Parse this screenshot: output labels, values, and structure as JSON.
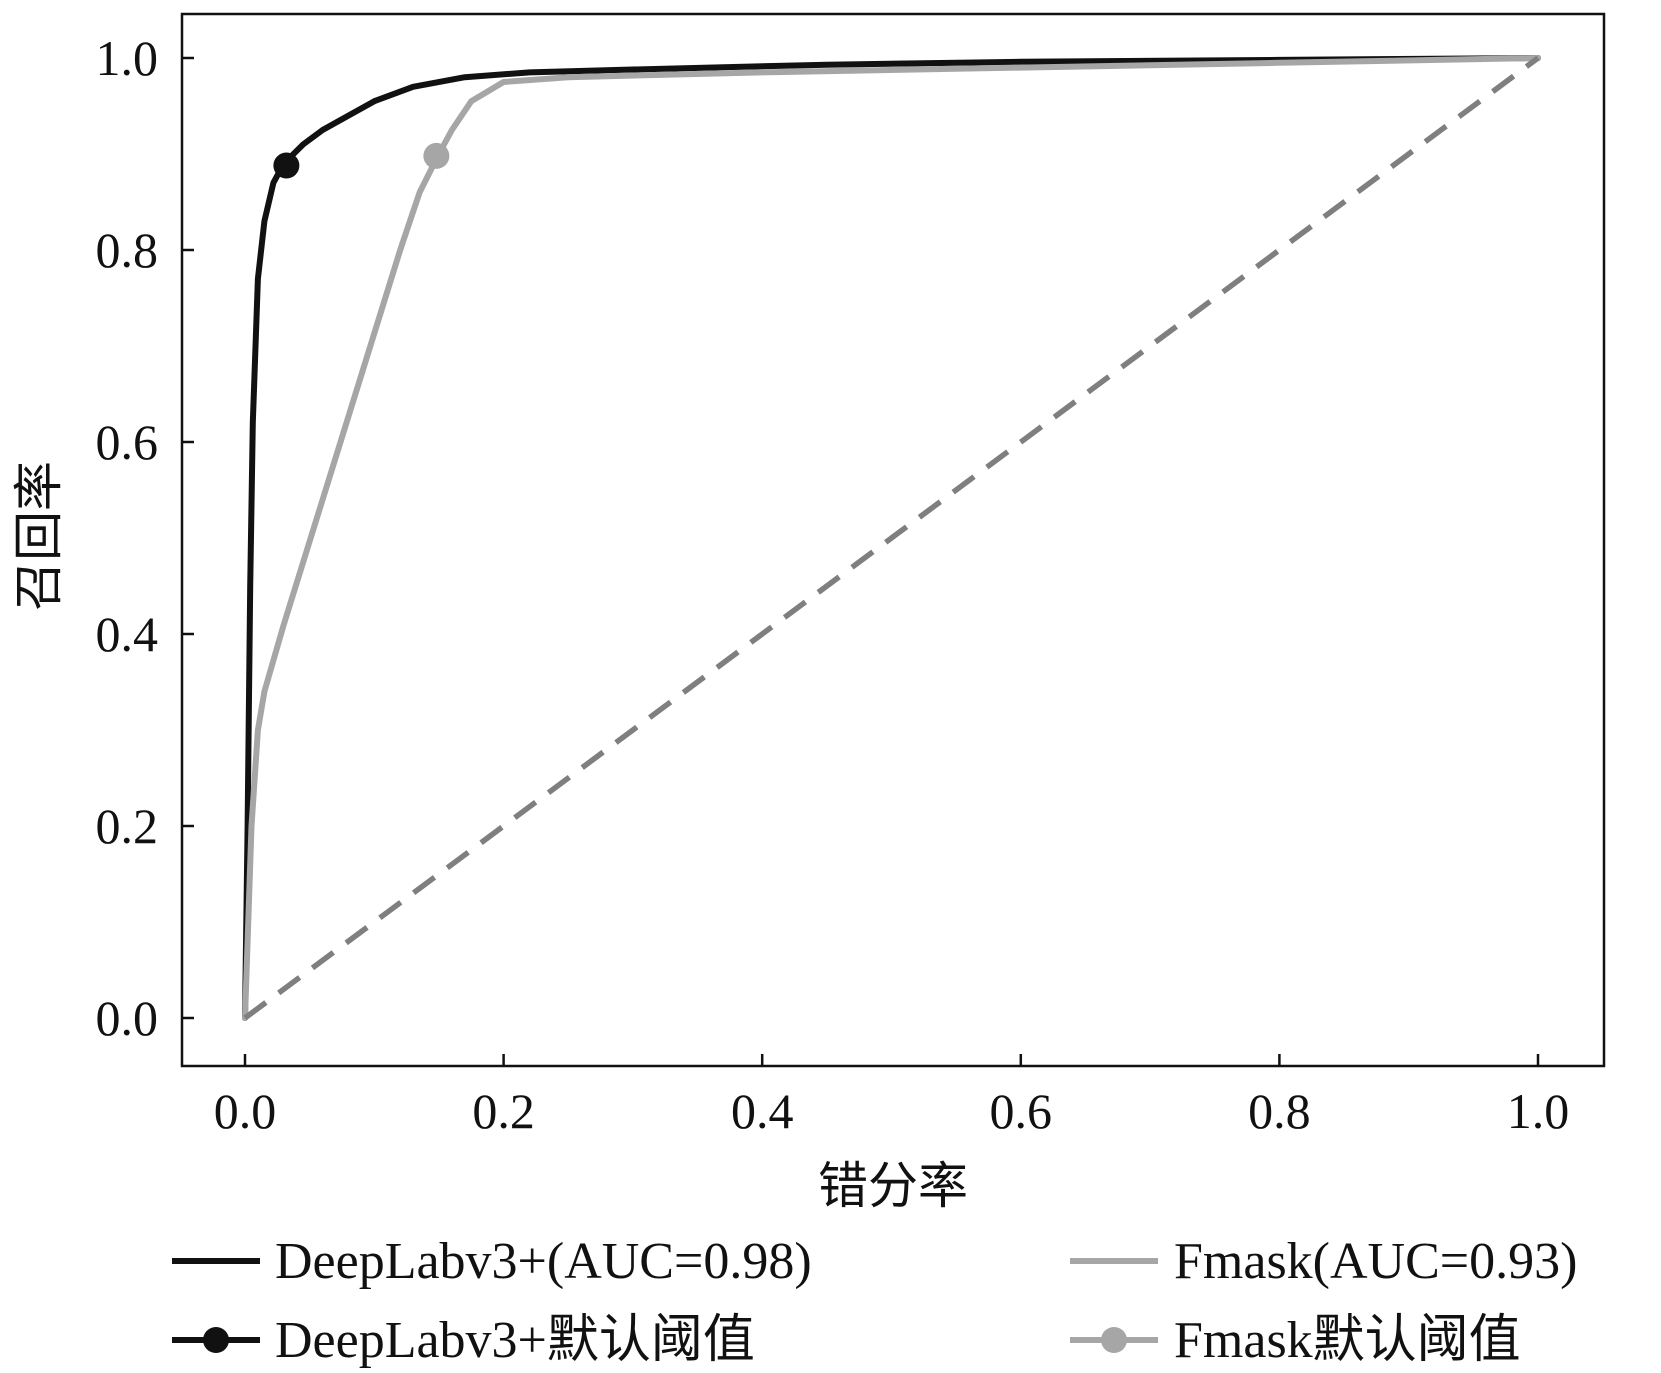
{
  "chart_data": {
    "type": "line",
    "title": "",
    "xlabel": "错分率",
    "ylabel": "召回率",
    "xlim": [
      -0.05,
      1.05
    ],
    "ylim": [
      -0.05,
      1.05
    ],
    "xticks": [
      "0.0",
      "0.2",
      "0.4",
      "0.6",
      "0.8",
      "1.0"
    ],
    "yticks": [
      "0.0",
      "0.2",
      "0.4",
      "0.6",
      "0.8",
      "1.0"
    ],
    "grid": false,
    "legend_position": "bottom",
    "series": [
      {
        "name": "DeepLabv3+(AUC=0.98)",
        "color": "#111111",
        "x": [
          0.0,
          0.002,
          0.004,
          0.006,
          0.01,
          0.015,
          0.022,
          0.03,
          0.045,
          0.06,
          0.08,
          0.1,
          0.13,
          0.17,
          0.22,
          0.3,
          0.45,
          0.6,
          0.8,
          1.0
        ],
        "y": [
          0.0,
          0.2,
          0.45,
          0.62,
          0.77,
          0.83,
          0.87,
          0.89,
          0.91,
          0.925,
          0.94,
          0.955,
          0.97,
          0.98,
          0.985,
          0.988,
          0.993,
          0.996,
          0.998,
          1.0
        ]
      },
      {
        "name": "Fmask(AUC=0.93)",
        "color": "#a6a6a6",
        "x": [
          0.0,
          0.005,
          0.01,
          0.015,
          0.03,
          0.06,
          0.09,
          0.12,
          0.135,
          0.15,
          0.16,
          0.175,
          0.2,
          0.25,
          0.4,
          0.6,
          0.8,
          1.0
        ],
        "y": [
          0.0,
          0.2,
          0.3,
          0.34,
          0.41,
          0.54,
          0.67,
          0.8,
          0.86,
          0.9,
          0.925,
          0.955,
          0.975,
          0.98,
          0.985,
          0.99,
          0.995,
          1.0
        ]
      },
      {
        "color": "#7f7f7f",
        "dashed": true,
        "x": [
          0.0,
          1.0
        ],
        "y": [
          0.0,
          1.0
        ]
      }
    ],
    "markers": [
      {
        "name": "DeepLabv3+默认阈值",
        "color": "#111111",
        "x": 0.032,
        "y": 0.888
      },
      {
        "name": "Fmask默认阈值",
        "color": "#a6a6a6",
        "x": 0.148,
        "y": 0.898
      }
    ]
  }
}
